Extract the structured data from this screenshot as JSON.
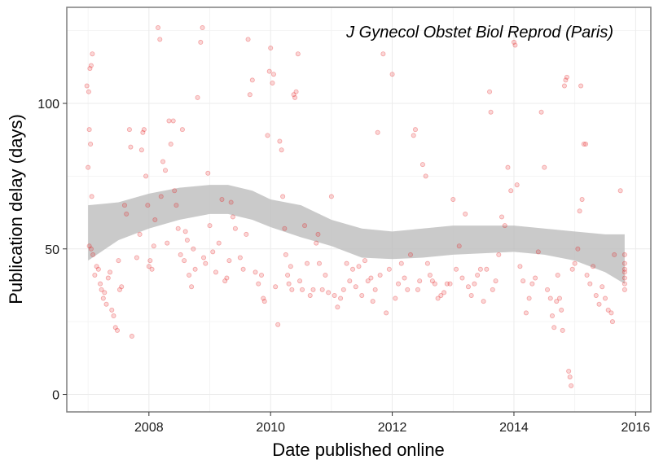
{
  "chart_data": {
    "type": "scatter",
    "title": "",
    "annotation": "J Gynecol Obstet Biol Reprod (Paris)",
    "xlabel": "Date published online",
    "ylabel": "Publication delay (days)",
    "xlim": [
      2006.65,
      2016.25
    ],
    "ylim": [
      -6,
      133
    ],
    "x_ticks": [
      2008,
      2010,
      2012,
      2014,
      2016
    ],
    "x_tick_labels": [
      "2008",
      "2010",
      "2012",
      "2014",
      "2016"
    ],
    "y_ticks": [
      0,
      50,
      100
    ],
    "y_tick_labels": [
      "0",
      "50",
      "100"
    ],
    "grid": true,
    "legend": "none",
    "colors": {
      "points": "#e41a1c",
      "band": "#bdbdbd",
      "grid": "#ebebeb",
      "panel_border": "#7f7f7f"
    },
    "points": [
      [
        2006.98,
        106
      ],
      [
        2007.01,
        104
      ],
      [
        2007.03,
        112
      ],
      [
        2007.05,
        113
      ],
      [
        2007.07,
        117
      ],
      [
        2007.02,
        91
      ],
      [
        2007.04,
        86
      ],
      [
        2007.0,
        78
      ],
      [
        2007.06,
        68
      ],
      [
        2007.02,
        51
      ],
      [
        2007.05,
        50
      ],
      [
        2007.08,
        48
      ],
      [
        2007.11,
        41
      ],
      [
        2007.14,
        44
      ],
      [
        2007.17,
        43
      ],
      [
        2007.2,
        38
      ],
      [
        2007.22,
        36
      ],
      [
        2007.25,
        33
      ],
      [
        2007.27,
        35
      ],
      [
        2007.3,
        31
      ],
      [
        2007.33,
        40
      ],
      [
        2007.36,
        42
      ],
      [
        2007.39,
        29
      ],
      [
        2007.42,
        27
      ],
      [
        2007.45,
        23
      ],
      [
        2007.48,
        22
      ],
      [
        2007.5,
        46
      ],
      [
        2007.52,
        36
      ],
      [
        2007.55,
        37
      ],
      [
        2007.6,
        65
      ],
      [
        2007.63,
        62
      ],
      [
        2007.68,
        91
      ],
      [
        2007.7,
        85
      ],
      [
        2007.72,
        20
      ],
      [
        2007.8,
        47
      ],
      [
        2007.85,
        55
      ],
      [
        2007.88,
        84
      ],
      [
        2007.9,
        90
      ],
      [
        2007.92,
        91
      ],
      [
        2007.95,
        75
      ],
      [
        2007.98,
        65
      ],
      [
        2008.0,
        44
      ],
      [
        2008.02,
        46
      ],
      [
        2008.05,
        43
      ],
      [
        2008.08,
        51
      ],
      [
        2008.1,
        60
      ],
      [
        2008.15,
        126
      ],
      [
        2008.18,
        122
      ],
      [
        2008.2,
        68
      ],
      [
        2008.23,
        80
      ],
      [
        2008.27,
        77
      ],
      [
        2008.3,
        52
      ],
      [
        2008.33,
        94
      ],
      [
        2008.36,
        86
      ],
      [
        2008.4,
        94
      ],
      [
        2008.42,
        70
      ],
      [
        2008.45,
        65
      ],
      [
        2008.48,
        57
      ],
      [
        2008.52,
        48
      ],
      [
        2008.55,
        91
      ],
      [
        2008.58,
        46
      ],
      [
        2008.6,
        56
      ],
      [
        2008.63,
        53
      ],
      [
        2008.66,
        41
      ],
      [
        2008.7,
        37
      ],
      [
        2008.73,
        50
      ],
      [
        2008.76,
        43
      ],
      [
        2008.8,
        102
      ],
      [
        2008.85,
        121
      ],
      [
        2008.88,
        126
      ],
      [
        2008.9,
        47
      ],
      [
        2008.93,
        45
      ],
      [
        2008.97,
        76
      ],
      [
        2009.0,
        58
      ],
      [
        2009.05,
        49
      ],
      [
        2009.1,
        42
      ],
      [
        2009.15,
        52
      ],
      [
        2009.2,
        67
      ],
      [
        2009.25,
        39
      ],
      [
        2009.28,
        40
      ],
      [
        2009.32,
        46
      ],
      [
        2009.35,
        66
      ],
      [
        2009.38,
        61
      ],
      [
        2009.42,
        57
      ],
      [
        2009.5,
        47
      ],
      [
        2009.55,
        43
      ],
      [
        2009.6,
        55
      ],
      [
        2009.63,
        122
      ],
      [
        2009.66,
        103
      ],
      [
        2009.7,
        108
      ],
      [
        2009.75,
        42
      ],
      [
        2009.8,
        38
      ],
      [
        2009.85,
        41
      ],
      [
        2009.88,
        33
      ],
      [
        2009.9,
        32
      ],
      [
        2009.95,
        89
      ],
      [
        2009.98,
        111
      ],
      [
        2010.0,
        119
      ],
      [
        2010.03,
        107
      ],
      [
        2010.05,
        110
      ],
      [
        2010.08,
        37
      ],
      [
        2010.12,
        24
      ],
      [
        2010.15,
        87
      ],
      [
        2010.18,
        84
      ],
      [
        2010.2,
        68
      ],
      [
        2010.23,
        57
      ],
      [
        2010.25,
        48
      ],
      [
        2010.28,
        41
      ],
      [
        2010.3,
        38
      ],
      [
        2010.33,
        44
      ],
      [
        2010.35,
        36
      ],
      [
        2010.38,
        103
      ],
      [
        2010.4,
        102
      ],
      [
        2010.42,
        104
      ],
      [
        2010.45,
        117
      ],
      [
        2010.48,
        39
      ],
      [
        2010.52,
        36
      ],
      [
        2010.56,
        58
      ],
      [
        2010.6,
        45
      ],
      [
        2010.65,
        34
      ],
      [
        2010.7,
        36
      ],
      [
        2010.75,
        52
      ],
      [
        2010.78,
        55
      ],
      [
        2010.8,
        45
      ],
      [
        2010.85,
        36
      ],
      [
        2010.9,
        41
      ],
      [
        2010.95,
        35
      ],
      [
        2011.0,
        68
      ],
      [
        2011.05,
        34
      ],
      [
        2011.1,
        30
      ],
      [
        2011.15,
        33
      ],
      [
        2011.2,
        36
      ],
      [
        2011.25,
        45
      ],
      [
        2011.3,
        39
      ],
      [
        2011.35,
        43
      ],
      [
        2011.4,
        37
      ],
      [
        2011.45,
        44
      ],
      [
        2011.5,
        34
      ],
      [
        2011.55,
        46
      ],
      [
        2011.6,
        39
      ],
      [
        2011.65,
        40
      ],
      [
        2011.68,
        32
      ],
      [
        2011.72,
        36
      ],
      [
        2011.76,
        90
      ],
      [
        2011.8,
        41
      ],
      [
        2011.85,
        117
      ],
      [
        2011.9,
        28
      ],
      [
        2011.95,
        43
      ],
      [
        2012.0,
        110
      ],
      [
        2012.05,
        33
      ],
      [
        2012.1,
        38
      ],
      [
        2012.15,
        45
      ],
      [
        2012.2,
        40
      ],
      [
        2012.25,
        36
      ],
      [
        2012.3,
        48
      ],
      [
        2012.35,
        89
      ],
      [
        2012.38,
        91
      ],
      [
        2012.42,
        36
      ],
      [
        2012.45,
        39
      ],
      [
        2012.5,
        79
      ],
      [
        2012.55,
        75
      ],
      [
        2012.58,
        45
      ],
      [
        2012.62,
        41
      ],
      [
        2012.66,
        39
      ],
      [
        2012.7,
        38
      ],
      [
        2012.75,
        33
      ],
      [
        2012.8,
        34
      ],
      [
        2012.85,
        35
      ],
      [
        2012.9,
        38
      ],
      [
        2012.95,
        38
      ],
      [
        2013.0,
        67
      ],
      [
        2013.05,
        43
      ],
      [
        2013.1,
        51
      ],
      [
        2013.15,
        40
      ],
      [
        2013.2,
        62
      ],
      [
        2013.25,
        37
      ],
      [
        2013.3,
        34
      ],
      [
        2013.35,
        38
      ],
      [
        2013.4,
        41
      ],
      [
        2013.45,
        43
      ],
      [
        2013.5,
        32
      ],
      [
        2013.55,
        43
      ],
      [
        2013.6,
        104
      ],
      [
        2013.62,
        97
      ],
      [
        2013.65,
        36
      ],
      [
        2013.7,
        39
      ],
      [
        2013.75,
        48
      ],
      [
        2013.8,
        61
      ],
      [
        2013.85,
        58
      ],
      [
        2013.9,
        78
      ],
      [
        2013.95,
        70
      ],
      [
        2014.0,
        121
      ],
      [
        2014.02,
        120
      ],
      [
        2014.05,
        72
      ],
      [
        2014.1,
        44
      ],
      [
        2014.15,
        39
      ],
      [
        2014.2,
        28
      ],
      [
        2014.25,
        33
      ],
      [
        2014.3,
        38
      ],
      [
        2014.35,
        40
      ],
      [
        2014.4,
        49
      ],
      [
        2014.45,
        97
      ],
      [
        2014.5,
        78
      ],
      [
        2014.55,
        36
      ],
      [
        2014.6,
        33
      ],
      [
        2014.63,
        27
      ],
      [
        2014.66,
        23
      ],
      [
        2014.7,
        32
      ],
      [
        2014.72,
        41
      ],
      [
        2014.75,
        33
      ],
      [
        2014.78,
        29
      ],
      [
        2014.8,
        22
      ],
      [
        2014.83,
        106
      ],
      [
        2014.85,
        108
      ],
      [
        2014.87,
        109
      ],
      [
        2014.9,
        8
      ],
      [
        2014.92,
        6
      ],
      [
        2014.94,
        3
      ],
      [
        2014.96,
        43
      ],
      [
        2015.0,
        45
      ],
      [
        2015.05,
        50
      ],
      [
        2015.08,
        63
      ],
      [
        2015.1,
        106
      ],
      [
        2015.12,
        67
      ],
      [
        2015.15,
        86
      ],
      [
        2015.18,
        86
      ],
      [
        2015.2,
        41
      ],
      [
        2015.25,
        38
      ],
      [
        2015.3,
        44
      ],
      [
        2015.35,
        34
      ],
      [
        2015.4,
        31
      ],
      [
        2015.45,
        37
      ],
      [
        2015.5,
        33
      ],
      [
        2015.55,
        29
      ],
      [
        2015.6,
        28
      ],
      [
        2015.62,
        25
      ],
      [
        2015.65,
        48
      ],
      [
        2015.75,
        70
      ],
      [
        2015.82,
        43
      ],
      [
        2015.82,
        45
      ],
      [
        2015.82,
        40
      ],
      [
        2015.82,
        38
      ],
      [
        2015.82,
        36
      ],
      [
        2015.82,
        48
      ],
      [
        2015.82,
        42
      ]
    ],
    "smooth_band": {
      "x": [
        2007.0,
        2007.5,
        2008.0,
        2008.5,
        2009.0,
        2009.3,
        2009.7,
        2010.0,
        2010.5,
        2011.0,
        2011.5,
        2012.0,
        2012.5,
        2013.0,
        2013.5,
        2014.0,
        2014.5,
        2015.0,
        2015.5,
        2015.82
      ],
      "lower": [
        46,
        53,
        57,
        60,
        62,
        62,
        60,
        57.5,
        54,
        51,
        47,
        46.5,
        47,
        48,
        48.5,
        49,
        48,
        46,
        42,
        38
      ],
      "upper": [
        65,
        66,
        69,
        71,
        72,
        72,
        70,
        67,
        65,
        60,
        57,
        56,
        57,
        58,
        58,
        58,
        57,
        56,
        55,
        55
      ]
    }
  }
}
